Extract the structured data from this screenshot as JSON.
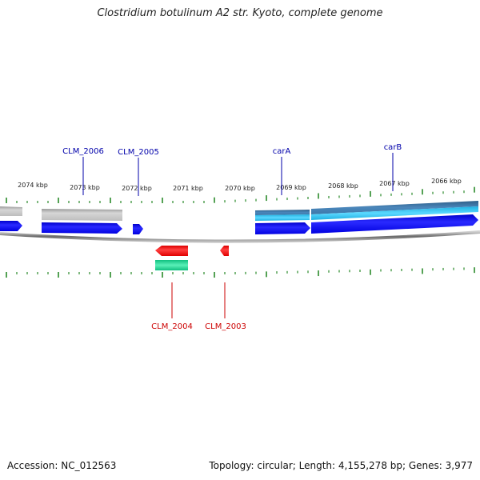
{
  "title": "Clostridium botulinum A2 str. Kyoto, complete genome",
  "footer": {
    "accession": "Accession: NC_012563",
    "summary": "Topology: circular; Length: 4,155,278 bp; Genes: 3,977"
  },
  "colors": {
    "forward_gene": "#1a1aff",
    "reverse_gene": "#ff2a2a",
    "feature_gray": "#bdbdbd",
    "feature_blue": "#3c78a8",
    "feature_cyan": "#37c8f0",
    "feature_green": "#22e39a",
    "tick_green": "#2a8a2a",
    "label_blue": "#0000aa",
    "label_red": "#cc0000",
    "backbone": "#8a8a8a"
  },
  "scale_labels": [
    "2074 kbp",
    "2073 kbp",
    "2072 kbp",
    "2071 kbp",
    "2070 kbp",
    "2069 kbp",
    "2068 kbp",
    "2067 kbp",
    "2066 kbp"
  ],
  "gene_labels": {
    "forward": [
      "CLM_2006",
      "CLM_2005",
      "carA",
      "carB"
    ],
    "reverse": [
      "CLM_2004",
      "CLM_2003"
    ]
  }
}
